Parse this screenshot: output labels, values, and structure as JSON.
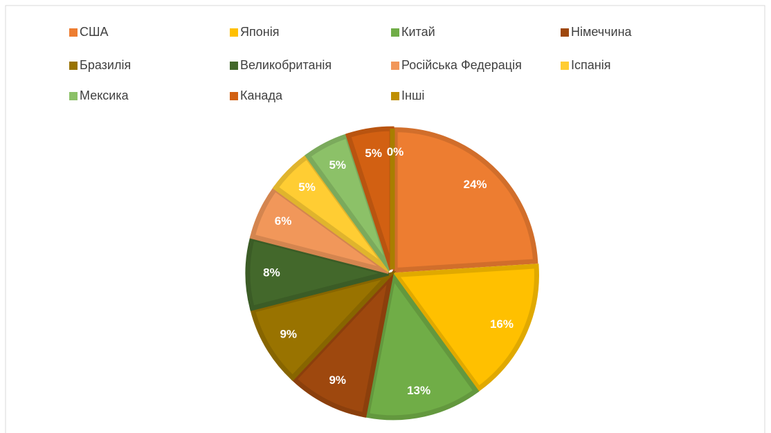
{
  "chart_data": {
    "type": "pie",
    "categories": [
      "США",
      "Японія",
      "Китай",
      "Німеччина",
      "Бразилія",
      "Великобританія",
      "Російська Федерація",
      "Іспанія",
      "Мексика",
      "Канада",
      "Інші"
    ],
    "values": [
      24,
      16,
      13,
      9,
      9,
      8,
      6,
      5,
      5,
      5,
      0
    ],
    "value_labels": [
      "24%",
      "16%",
      "13%",
      "9%",
      "9%",
      "8%",
      "6%",
      "5%",
      "5%",
      "5%",
      "0%"
    ],
    "colors": [
      "#ed7d31",
      "#ffc000",
      "#70ad47",
      "#9e480e",
      "#997300",
      "#43682b",
      "#f1975a",
      "#ffcd33",
      "#8cc168",
      "#d26012",
      "#bf8f00"
    ],
    "legend": "top"
  }
}
